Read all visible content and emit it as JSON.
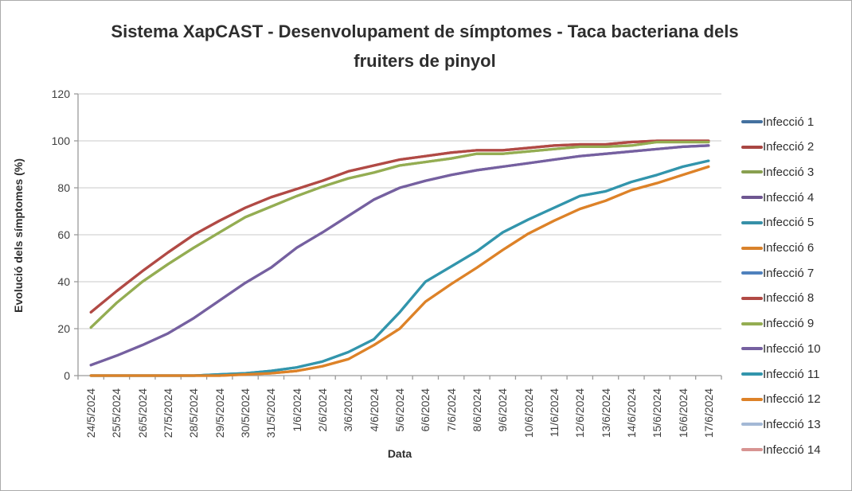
{
  "chart_data": {
    "type": "line",
    "title": "Sistema XapCAST - Desenvolupament de símptomes - Taca bacteriana dels fruiters de pinyol",
    "xlabel": "Data",
    "ylabel": "Evolució dels símptomes (%)",
    "ylim": [
      0,
      120
    ],
    "yticks": [
      0,
      20,
      40,
      60,
      80,
      100,
      120
    ],
    "grid": true,
    "legend_position": "right",
    "categories": [
      "24/5/2024",
      "25/5/2024",
      "26/5/2024",
      "27/5/2024",
      "28/5/2024",
      "29/5/2024",
      "30/5/2024",
      "31/5/2024",
      "1/6/2024",
      "2/6/2024",
      "3/6/2024",
      "4/6/2024",
      "5/6/2024",
      "6/6/2024",
      "7/6/2024",
      "8/6/2024",
      "9/6/2024",
      "10/6/2024",
      "11/6/2024",
      "12/6/2024",
      "13/6/2024",
      "14/6/2024",
      "15/6/2024",
      "16/6/2024",
      "17/6/2024"
    ],
    "series": [
      {
        "name": "Infecció 1",
        "color": "#44719F",
        "values": []
      },
      {
        "name": "Infecció 2",
        "color": "#A94643",
        "values": [
          27,
          36,
          44.5,
          52.5,
          60,
          66,
          71.5,
          76,
          79.5,
          83,
          87,
          89.5,
          92,
          93.5,
          95,
          96,
          96,
          97,
          98,
          98.5,
          98.5,
          99.5,
          100,
          100,
          100
        ]
      },
      {
        "name": "Infecció 3",
        "color": "#89A050",
        "values": [
          20.5,
          31,
          40,
          47.5,
          54.5,
          61,
          67.5,
          72,
          76.5,
          80.5,
          84,
          86.5,
          89.5,
          91,
          92.5,
          94.5,
          94.5,
          95.5,
          96.5,
          97.5,
          97.5,
          98,
          99.5,
          99.5,
          99.5
        ]
      },
      {
        "name": "Infecció 4",
        "color": "#6E5691",
        "values": [
          4.5,
          8.5,
          13,
          18,
          24.5,
          32,
          39.5,
          46,
          54.5,
          61,
          68,
          75,
          80,
          83,
          85.5,
          87.5,
          89,
          90.5,
          92,
          93.5,
          94.5,
          95.5,
          96.5,
          97.5,
          98
        ]
      },
      {
        "name": "Infecció 5",
        "color": "#3790A8",
        "values": [
          0,
          0,
          0,
          0,
          0,
          0.5,
          1,
          2,
          3.5,
          6,
          10,
          15.5,
          27,
          40,
          46.5,
          53,
          61,
          66.5,
          71.5,
          76.5,
          78.5,
          82.5,
          85.5,
          89,
          91.5
        ]
      },
      {
        "name": "Infecció 6",
        "color": "#D9822B",
        "values": [
          0,
          0,
          0,
          0,
          0,
          0,
          0.5,
          1,
          2,
          4,
          7,
          13,
          20,
          31.5,
          39,
          46,
          53.5,
          60.5,
          66,
          71,
          74.5,
          79,
          82,
          85.5,
          89
        ]
      },
      {
        "name": "Infecció 7",
        "color": "#4F81BD",
        "values": []
      },
      {
        "name": "Infecció 8",
        "color": "#B14A45",
        "values": [
          27,
          36,
          44.5,
          52.5,
          60,
          66,
          71.5,
          76,
          79.5,
          83,
          87,
          89.5,
          92,
          93.5,
          95,
          96,
          96,
          97,
          98,
          98.5,
          98.5,
          99.5,
          100,
          100,
          100
        ]
      },
      {
        "name": "Infecció 9",
        "color": "#94AD52",
        "values": [
          20.5,
          31,
          40,
          47.5,
          54.5,
          61,
          67.5,
          72,
          76.5,
          80.5,
          84,
          86.5,
          89.5,
          91,
          92.5,
          94.5,
          94.5,
          95.5,
          96.5,
          97.5,
          97.5,
          98,
          99.5,
          99.5,
          99.5
        ]
      },
      {
        "name": "Infecció 10",
        "color": "#7560A0",
        "values": [
          4.5,
          8.5,
          13,
          18,
          24.5,
          32,
          39.5,
          46,
          54.5,
          61,
          68,
          75,
          80,
          83,
          85.5,
          87.5,
          89,
          90.5,
          92,
          93.5,
          94.5,
          95.5,
          96.5,
          97.5,
          98
        ]
      },
      {
        "name": "Infecció 11",
        "color": "#3295AC",
        "values": [
          0,
          0,
          0,
          0,
          0,
          0.5,
          1,
          2,
          3.5,
          6,
          10,
          15.5,
          27,
          40,
          46.5,
          53,
          61,
          66.5,
          71.5,
          76.5,
          78.5,
          82.5,
          85.5,
          89,
          91.5
        ]
      },
      {
        "name": "Infecció 12",
        "color": "#DD8228",
        "values": [
          0,
          0,
          0,
          0,
          0,
          0,
          0.5,
          1,
          2,
          4,
          7,
          13,
          20,
          31.5,
          39,
          46,
          53.5,
          60.5,
          66,
          71,
          74.5,
          79,
          82,
          85.5,
          89
        ]
      },
      {
        "name": "Infecció 13",
        "color": "#A3B8D5",
        "values": []
      },
      {
        "name": "Infecció 14",
        "color": "#D79492",
        "values": []
      }
    ]
  }
}
